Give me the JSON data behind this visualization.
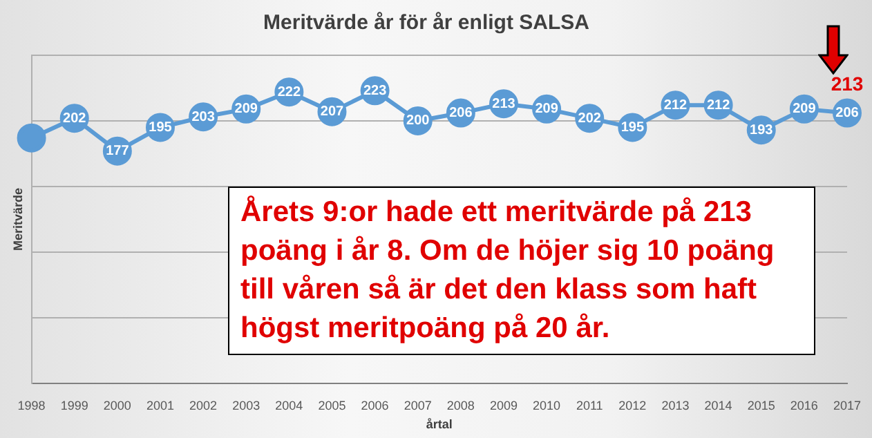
{
  "chart_data": {
    "type": "line",
    "title": "Meritvärde år för år enligt SALSA",
    "xlabel": "årtal",
    "ylabel": "Meritvärde",
    "categories": [
      "1998",
      "1999",
      "2000",
      "2001",
      "2002",
      "2003",
      "2004",
      "2005",
      "2006",
      "2007",
      "2008",
      "2009",
      "2010",
      "2011",
      "2012",
      "2013",
      "2014",
      "2015",
      "2016",
      "2017"
    ],
    "series": [
      {
        "color": "#5b9bd5",
        "values": [
          187,
          202,
          177,
          195,
          203,
          209,
          222,
          207,
          223,
          200,
          206,
          213,
          209,
          202,
          195,
          212,
          212,
          193,
          209,
          206
        ],
        "value_labels": [
          null,
          "202",
          "177",
          "195",
          "203",
          "209",
          "222",
          "207",
          "223",
          "200",
          "206",
          "213",
          "209",
          "202",
          "195",
          "212",
          "212",
          "193",
          "209",
          "206"
        ]
      }
    ],
    "ylim": [
      0,
      250
    ],
    "tick_labels": "x",
    "grid": "y",
    "marker": "circle",
    "line_style": "solid",
    "annotations": [
      {
        "text": "213",
        "x": "2017",
        "y": 206
      },
      "Årets 9:or hade ett meritvärde på 213 poäng i år 8. Om de höjer sig 10 poäng till våren så är det den klass som haft högst meritpoäng på 20 år."
    ]
  }
}
